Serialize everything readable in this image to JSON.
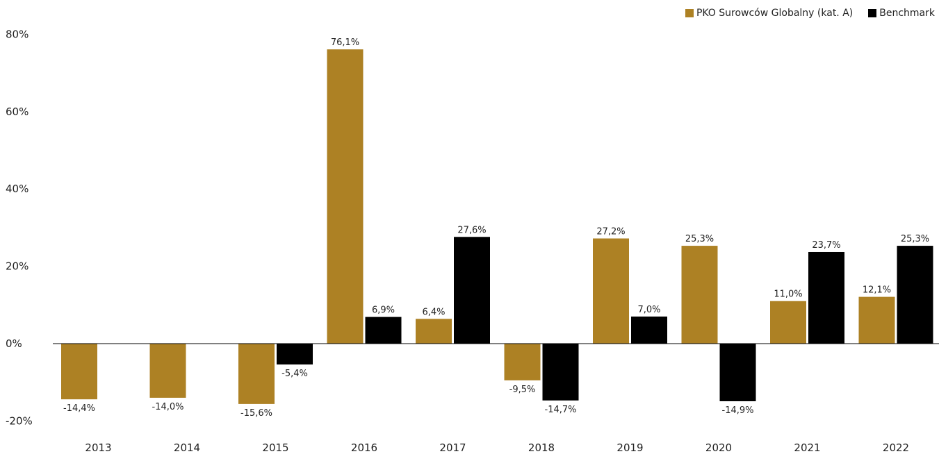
{
  "chart_data": {
    "type": "bar",
    "categories": [
      "2013",
      "2014",
      "2015",
      "2016",
      "2017",
      "2018",
      "2019",
      "2020",
      "2021",
      "2022"
    ],
    "series": [
      {
        "name": "PKO Surowców Globalny (kat. A)",
        "color": "#ad8124",
        "values": [
          -14.4,
          -14.0,
          -15.6,
          76.1,
          6.4,
          -9.5,
          27.2,
          25.3,
          11.0,
          12.1
        ],
        "labels": [
          "-14,4%",
          "-14,0%",
          "-15,6%",
          "76,1%",
          "6,4%",
          "-9,5%",
          "27,2%",
          "25,3%",
          "11,0%",
          "12,1%"
        ]
      },
      {
        "name": "Benchmark",
        "color": "#000000",
        "values": [
          null,
          null,
          -5.4,
          6.9,
          27.6,
          -14.7,
          7.0,
          -14.9,
          23.7,
          25.3
        ],
        "labels": [
          "",
          "",
          "-5,4%",
          "6,9%",
          "27,6%",
          "-14,7%",
          "7,0%",
          "-14,9%",
          "23,7%",
          "25,3%"
        ]
      }
    ],
    "yticks": [
      80,
      60,
      40,
      20,
      0,
      -20
    ],
    "ytick_labels": [
      "80%",
      "60%",
      "40%",
      "20%",
      "0%",
      "-20%"
    ],
    "ylim": [
      -20,
      80
    ],
    "legend_position": "top-right",
    "grid": false
  }
}
